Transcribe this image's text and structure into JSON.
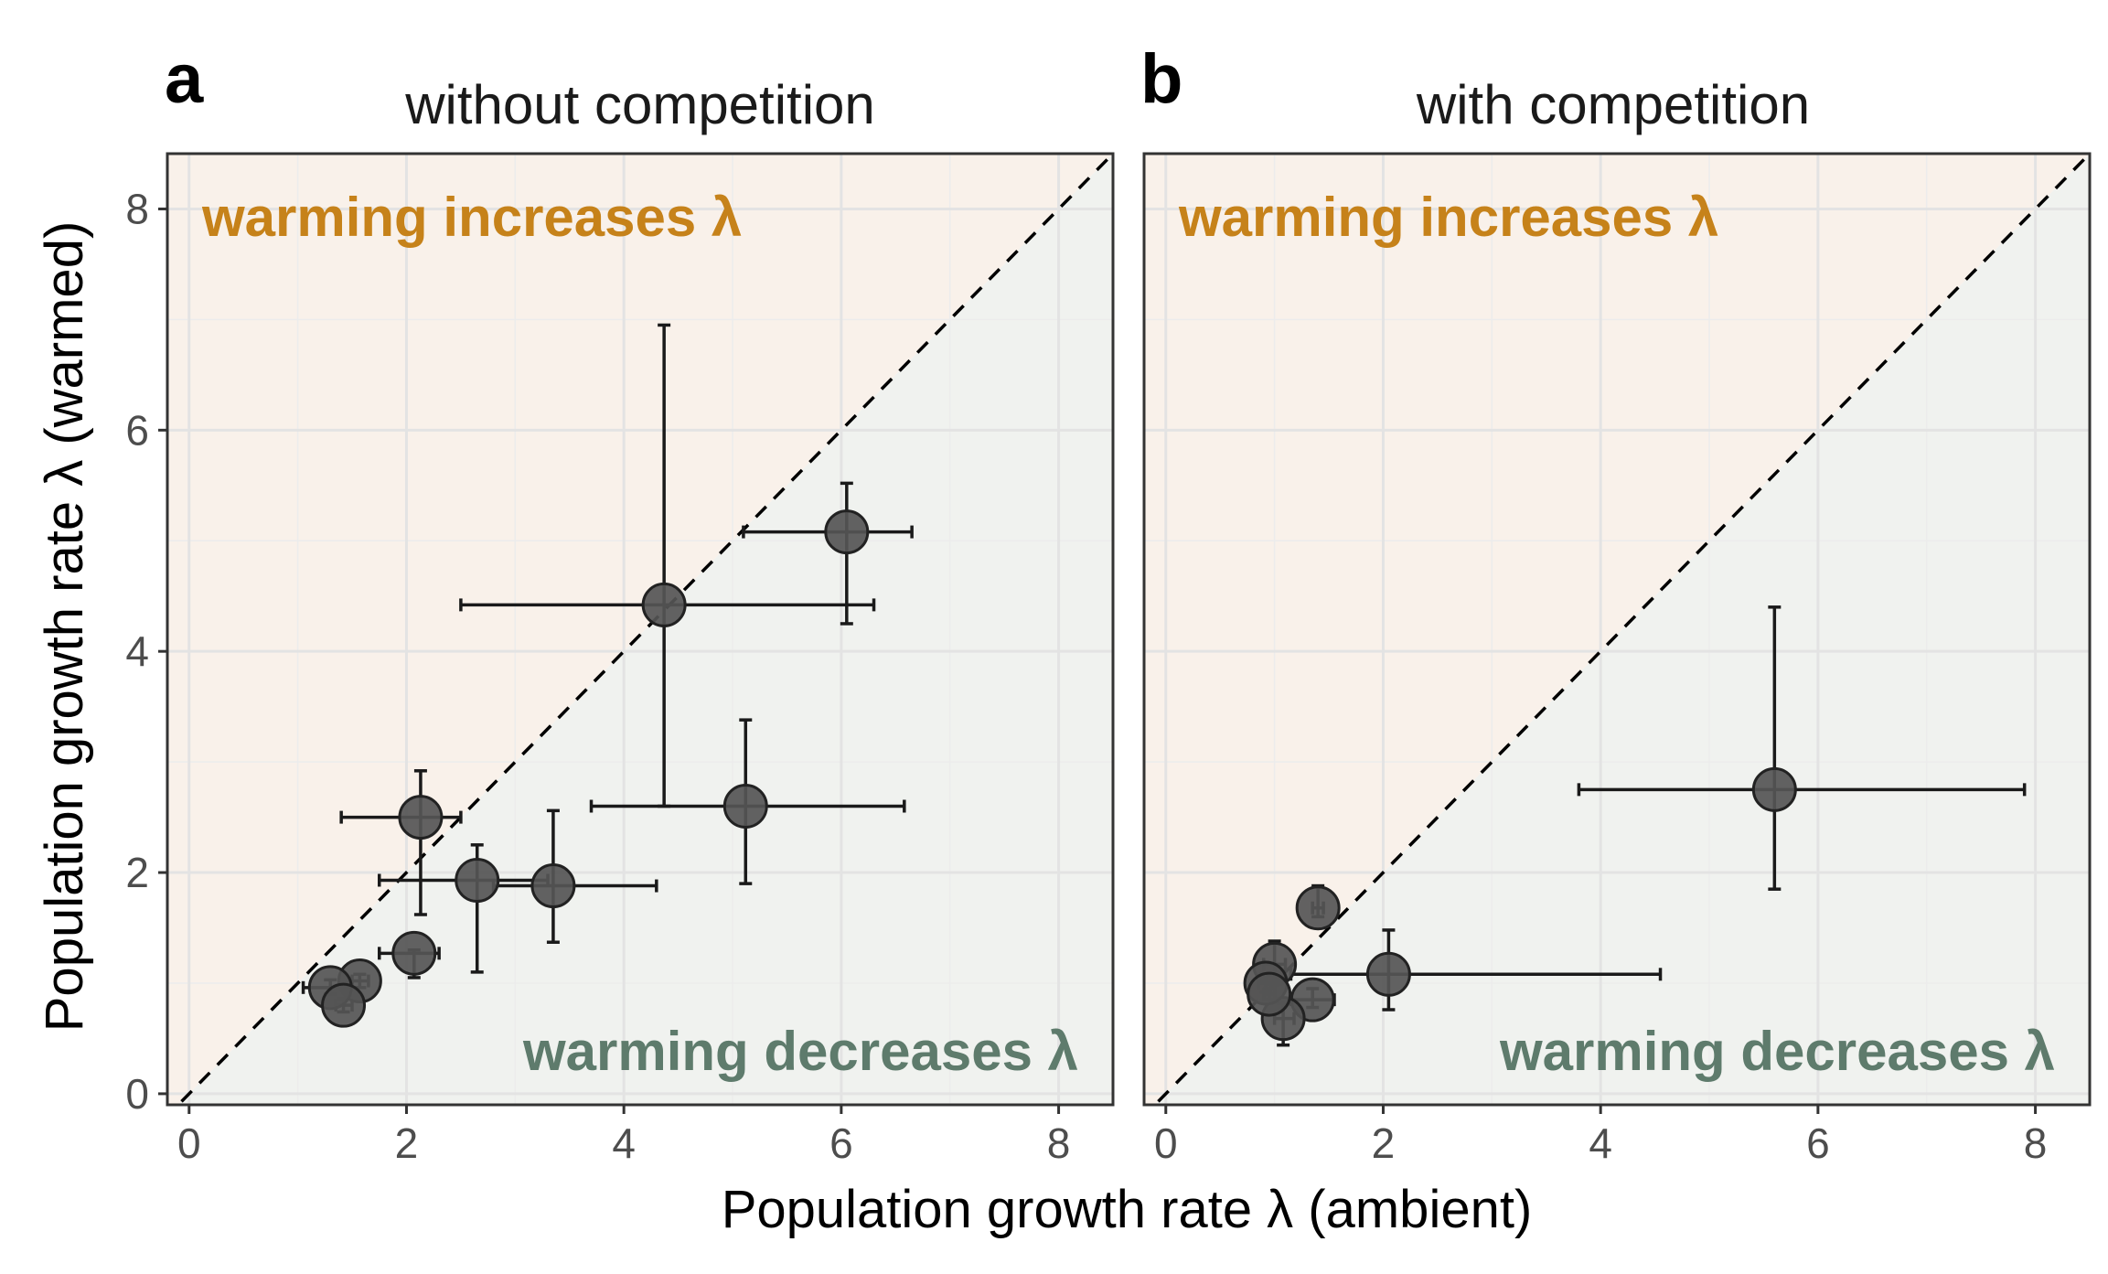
{
  "figure": {
    "xlabel": "Population growth rate λ (ambient)",
    "ylabel": "Population growth rate λ (warmed)",
    "increase_label": "warming increases λ",
    "decrease_label": "warming decreases λ",
    "colors": {
      "increase_fill": "#f9f1ea",
      "decrease_fill": "#f0f2ef",
      "increase_text": "#c6821a",
      "decrease_text": "#5e7b6c",
      "point_fill": "#555555",
      "point_stroke": "#222222",
      "grid_major": "#e3e3e3",
      "grid_minor": "#ececec"
    }
  },
  "chart_data": [
    {
      "type": "scatter",
      "panel_letter": "a",
      "title": "without competition",
      "xlim": [
        -0.2,
        8.5
      ],
      "ylim": [
        -0.1,
        8.5
      ],
      "xticks": [
        "0",
        "2",
        "4",
        "6",
        "8"
      ],
      "yticks": [
        "0",
        "2",
        "4",
        "6",
        "8"
      ],
      "reference_line": "y = x",
      "grid": true,
      "points": [
        {
          "x": 6.05,
          "y": 5.08,
          "xerr": [
            5.1,
            6.65
          ],
          "yerr": [
            4.25,
            5.52
          ]
        },
        {
          "x": 4.37,
          "y": 4.42,
          "xerr": [
            2.5,
            6.3
          ],
          "yerr": [
            2.6,
            6.95
          ]
        },
        {
          "x": 5.12,
          "y": 2.6,
          "xerr": [
            3.7,
            6.58
          ],
          "yerr": [
            1.9,
            3.38
          ]
        },
        {
          "x": 2.13,
          "y": 2.5,
          "xerr": [
            1.4,
            2.5
          ],
          "yerr": [
            1.62,
            2.92
          ]
        },
        {
          "x": 2.65,
          "y": 1.93,
          "xerr": [
            1.75,
            3.3
          ],
          "yerr": [
            1.1,
            2.25
          ]
        },
        {
          "x": 3.35,
          "y": 1.88,
          "xerr": [
            2.8,
            4.3
          ],
          "yerr": [
            1.37,
            2.56
          ]
        },
        {
          "x": 2.07,
          "y": 1.27,
          "xerr": [
            1.75,
            2.3
          ],
          "yerr": [
            1.05,
            1.3
          ]
        },
        {
          "x": 1.57,
          "y": 1.02,
          "xerr": [
            1.5,
            1.65
          ],
          "yerr": [
            0.96,
            1.08
          ]
        },
        {
          "x": 1.3,
          "y": 0.96,
          "xerr": [
            1.05,
            1.45
          ],
          "yerr": [
            0.9,
            1.03
          ]
        },
        {
          "x": 1.42,
          "y": 0.8,
          "xerr": [
            1.35,
            1.5
          ],
          "yerr": [
            0.74,
            0.86
          ]
        }
      ]
    },
    {
      "type": "scatter",
      "panel_letter": "b",
      "title": "with competition",
      "xlim": [
        -0.2,
        8.5
      ],
      "ylim": [
        -0.1,
        8.5
      ],
      "xticks": [
        "0",
        "2",
        "4",
        "6",
        "8"
      ],
      "yticks": [
        "0",
        "2",
        "4",
        "6",
        "8"
      ],
      "reference_line": "y = x",
      "grid": true,
      "points": [
        {
          "x": 5.6,
          "y": 2.75,
          "xerr": [
            3.8,
            7.9
          ],
          "yerr": [
            1.85,
            4.4
          ]
        },
        {
          "x": 2.05,
          "y": 1.08,
          "xerr": [
            1.15,
            4.55
          ],
          "yerr": [
            0.76,
            1.48
          ]
        },
        {
          "x": 1.4,
          "y": 1.68,
          "xerr": [
            1.35,
            1.45
          ],
          "yerr": [
            1.6,
            1.88
          ]
        },
        {
          "x": 1.0,
          "y": 1.17,
          "xerr": [
            0.9,
            1.1
          ],
          "yerr": [
            1.0,
            1.38
          ]
        },
        {
          "x": 1.35,
          "y": 0.85,
          "xerr": [
            1.15,
            1.55
          ],
          "yerr": [
            0.78,
            0.95
          ]
        },
        {
          "x": 1.08,
          "y": 0.68,
          "xerr": [
            1.0,
            1.18
          ],
          "yerr": [
            0.44,
            0.82
          ]
        },
        {
          "x": 0.92,
          "y": 1.0,
          "xerr": [
            0.85,
            1.0
          ],
          "yerr": [
            0.92,
            1.08
          ]
        },
        {
          "x": 0.95,
          "y": 0.9,
          "xerr": [
            0.9,
            1.0
          ],
          "yerr": [
            0.85,
            0.95
          ]
        }
      ]
    }
  ]
}
